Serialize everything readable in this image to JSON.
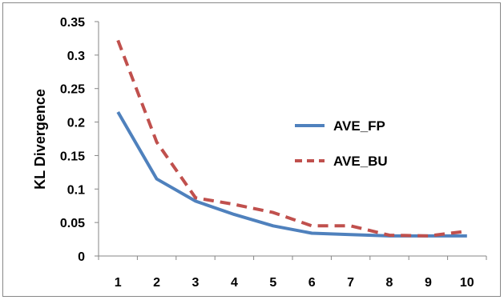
{
  "chart_data": {
    "type": "line",
    "title": "",
    "xlabel": "",
    "ylabel": "KL Divergence",
    "categories": [
      "1",
      "2",
      "3",
      "4",
      "5",
      "6",
      "7",
      "8",
      "9",
      "10"
    ],
    "ylim": [
      0,
      0.35
    ],
    "yticks": [
      "0",
      "0.05",
      "0.1",
      "0.15",
      "0.2",
      "0.25",
      "0.3",
      "0.35"
    ],
    "grid": false,
    "legend_position": "right",
    "series": [
      {
        "name": "AVE_FP",
        "color": "#4f81bd",
        "style": "solid",
        "values": [
          0.215,
          0.115,
          0.082,
          0.062,
          0.045,
          0.034,
          0.032,
          0.03,
          0.03,
          0.03
        ]
      },
      {
        "name": "AVE_BU",
        "color": "#c0504d",
        "style": "dashed",
        "values": [
          0.322,
          0.17,
          0.087,
          0.077,
          0.065,
          0.045,
          0.045,
          0.031,
          0.03,
          0.037
        ]
      }
    ]
  }
}
